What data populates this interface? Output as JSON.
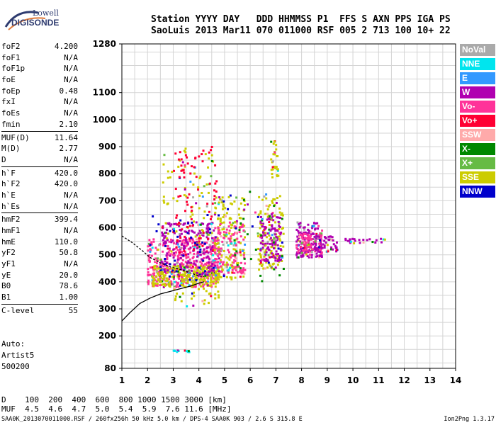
{
  "logo": {
    "line1": "Lowell",
    "line2": "DIGISONDE"
  },
  "header": {
    "line1": "Station YYYY DAY   DDD HHMMSS P1  FFS S AXN PPS IGA PS",
    "line2": "SaoLuis 2013 Mar11 070 011000 RSF 005 2 713 100 10+ 22"
  },
  "params": [
    [
      {
        "k": "foF2",
        "v": "4.200"
      },
      {
        "k": "foF1",
        "v": "N/A"
      },
      {
        "k": "foF1p",
        "v": "N/A"
      },
      {
        "k": "foE",
        "v": "N/A"
      },
      {
        "k": "foEp",
        "v": "0.48"
      },
      {
        "k": "fxI",
        "v": "N/A"
      },
      {
        "k": "foEs",
        "v": "N/A"
      },
      {
        "k": "fmin",
        "v": "2.10"
      }
    ],
    [
      {
        "k": "MUF(D)",
        "v": "11.64"
      },
      {
        "k": "M(D)",
        "v": "2.77"
      },
      {
        "k": "D",
        "v": "N/A"
      }
    ],
    [
      {
        "k": "h`F",
        "v": "420.0"
      },
      {
        "k": "h`F2",
        "v": "420.0"
      },
      {
        "k": "h`E",
        "v": "N/A"
      },
      {
        "k": "h`Es",
        "v": "N/A"
      }
    ],
    [
      {
        "k": "hmF2",
        "v": "399.4"
      },
      {
        "k": "hmF1",
        "v": "N/A"
      },
      {
        "k": "hmE",
        "v": "110.0"
      },
      {
        "k": "yF2",
        "v": "50.8"
      },
      {
        "k": "yF1",
        "v": "N/A"
      },
      {
        "k": "yE",
        "v": "20.0"
      },
      {
        "k": "B0",
        "v": "78.6"
      },
      {
        "k": "B1",
        "v": "1.00"
      }
    ],
    [
      {
        "k": "C-level",
        "v": "55"
      }
    ]
  ],
  "auto": {
    "line1": "Auto:",
    "line2": "Artist5",
    "line3": "500200"
  },
  "dmuf": {
    "d_label": "D",
    "d_values": "100  200  400  600  800 1000 1500 3000 [km]",
    "muf_label": "MUF",
    "muf_values": "4.5  4.6  4.7  5.0  5.4  5.9  7.6 11.6 [MHz]"
  },
  "footer": {
    "left": "SAA0K_2013070011000.RSF / 260fx256h 50 kHz 5.0 km / DPS-4 SAA0K 903 / 2.6 S 315.8 E",
    "right": "Ion2Png 1.3.17"
  },
  "legend": [
    {
      "name": "NoVal",
      "color": "#aaaaaa"
    },
    {
      "name": "NNE",
      "color": "#00e5ee"
    },
    {
      "name": "E",
      "color": "#3399ff"
    },
    {
      "name": "W",
      "color": "#b000b0"
    },
    {
      "name": "Vo-",
      "color": "#ff3399"
    },
    {
      "name": "Vo+",
      "color": "#ff0033"
    },
    {
      "name": "SSW",
      "color": "#ffaaaa"
    },
    {
      "name": "X-",
      "color": "#008800"
    },
    {
      "name": "X+",
      "color": "#66bb44"
    },
    {
      "name": "SSE",
      "color": "#cccc00"
    },
    {
      "name": "NNW",
      "color": "#0000cc"
    }
  ],
  "chart_data": {
    "type": "scatter",
    "xlim": [
      1,
      14
    ],
    "ylim": [
      80,
      1280
    ],
    "xticks": [
      1,
      2,
      3,
      4,
      5,
      6,
      7,
      8,
      9,
      10,
      11,
      12,
      13,
      14
    ],
    "yticks": [
      80,
      200,
      300,
      400,
      500,
      600,
      700,
      800,
      900,
      1000,
      1100,
      1280
    ],
    "grid": true,
    "legend_placement": "right",
    "profile_curve": {
      "x": [
        1.0,
        1.3,
        1.7,
        2.1,
        2.5,
        2.9,
        3.3,
        3.7,
        4.0,
        4.2
      ],
      "y": [
        255,
        285,
        320,
        340,
        355,
        365,
        375,
        385,
        395,
        400
      ]
    },
    "trace_curve": {
      "x": [
        1.0,
        1.4,
        1.8,
        2.1,
        2.5,
        2.9,
        3.3,
        3.6,
        3.9,
        4.1,
        4.2
      ],
      "y": [
        570,
        545,
        515,
        490,
        470,
        455,
        445,
        435,
        425,
        420,
        420
      ]
    },
    "echo_regions": [
      {
        "x": [
          2.0,
          4.8
        ],
        "y": [
          380,
          560
        ],
        "color": "#ff3399",
        "density": 420
      },
      {
        "x": [
          2.2,
          4.8
        ],
        "y": [
          380,
          460
        ],
        "color": "#cccc00",
        "density": 260
      },
      {
        "x": [
          2.5,
          4.6
        ],
        "y": [
          420,
          620
        ],
        "color": "#b000b0",
        "density": 200
      },
      {
        "x": [
          2.6,
          4.8
        ],
        "y": [
          540,
          900
        ],
        "color": "#cccc00",
        "density": 70
      },
      {
        "x": [
          3.0,
          4.7
        ],
        "y": [
          500,
          900
        ],
        "color": "#ff0033",
        "density": 90
      },
      {
        "x": [
          4.6,
          5.8
        ],
        "y": [
          400,
          720
        ],
        "color": "#cccc00",
        "density": 160
      },
      {
        "x": [
          4.6,
          5.8
        ],
        "y": [
          430,
          620
        ],
        "color": "#ff3399",
        "density": 120
      },
      {
        "x": [
          6.3,
          7.3
        ],
        "y": [
          440,
          720
        ],
        "color": "#cccc00",
        "density": 120
      },
      {
        "x": [
          6.4,
          7.2
        ],
        "y": [
          470,
          650
        ],
        "color": "#b000b0",
        "density": 120
      },
      {
        "x": [
          6.8,
          7.1
        ],
        "y": [
          780,
          920
        ],
        "color": "#cccc00",
        "density": 30
      },
      {
        "x": [
          7.8,
          8.8
        ],
        "y": [
          490,
          620
        ],
        "color": "#b000b0",
        "density": 150
      },
      {
        "x": [
          7.8,
          8.8
        ],
        "y": [
          500,
          580
        ],
        "color": "#ff3399",
        "density": 90
      },
      {
        "x": [
          8.5,
          9.4
        ],
        "y": [
          510,
          570
        ],
        "color": "#b000b0",
        "density": 60
      },
      {
        "x": [
          9.7,
          11.3
        ],
        "y": [
          540,
          560
        ],
        "color": "#b000b0",
        "density": 25
      },
      {
        "x": [
          3.0,
          4.8
        ],
        "y": [
          300,
          380
        ],
        "color": "#cccc00",
        "density": 30
      },
      {
        "x": [
          5.2,
          7.4
        ],
        "y": [
          400,
          740
        ],
        "color": "#008800",
        "density": 30
      },
      {
        "x": [
          3.0,
          3.7
        ],
        "y": [
          140,
          146
        ],
        "color": "#00e5ee",
        "density": 14
      },
      {
        "x": [
          2.0,
          4.8
        ],
        "y": [
          400,
          650
        ],
        "color": "#0000cc",
        "density": 40
      }
    ]
  }
}
